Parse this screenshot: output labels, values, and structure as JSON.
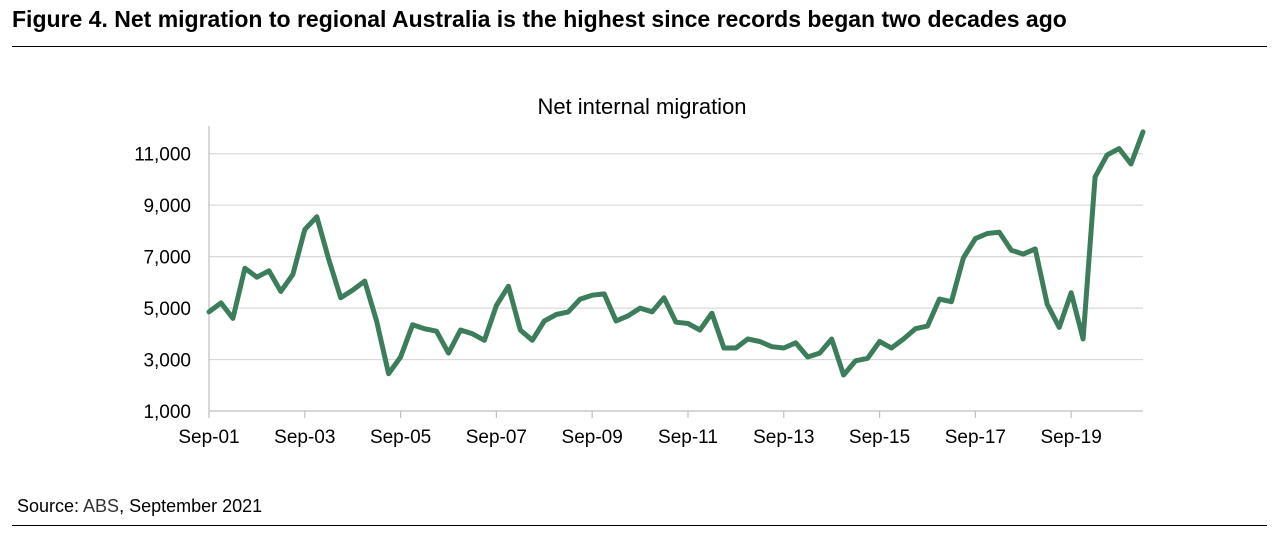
{
  "figure": {
    "title": "Figure 4. Net migration to regional Australia is the highest since records began two decades ago"
  },
  "source": {
    "prefix": "Source: ",
    "name": "ABS",
    "suffix": ", September 2021"
  },
  "colors": {
    "line": "#3c7d5b",
    "grid": "#d9d9d9",
    "axis": "#bfbfbf",
    "text": "#000000"
  },
  "chart_data": {
    "type": "line",
    "title": "Net internal migration",
    "xlabel": "",
    "ylabel": "",
    "ylim": [
      1000,
      12000
    ],
    "yticks": [
      1000,
      3000,
      5000,
      7000,
      9000,
      11000
    ],
    "ytick_labels": [
      "1,000",
      "3,000",
      "5,000",
      "7,000",
      "9,000",
      "11,000"
    ],
    "x_tick_labels": [
      "Sep-01",
      "Sep-03",
      "Sep-05",
      "Sep-07",
      "Sep-09",
      "Sep-11",
      "Sep-13",
      "Sep-15",
      "Sep-17",
      "Sep-19"
    ],
    "x_tick_every": 8,
    "grid": true,
    "legend": "none",
    "series": [
      {
        "values": [
          4850,
          5200,
          4600,
          6550,
          6200,
          6450,
          5650,
          6300,
          8050,
          8550,
          6900,
          5400,
          5700,
          6050,
          4500,
          2450,
          3100,
          4350,
          4200,
          4100,
          3250,
          4150,
          4000,
          3750,
          5100,
          5850,
          4150,
          3750,
          4500,
          4750,
          4850,
          5350,
          5500,
          5550,
          4500,
          4700,
          5000,
          4850,
          5400,
          4450,
          4400,
          4150,
          4800,
          3450,
          3450,
          3800,
          3700,
          3500,
          3450,
          3650,
          3100,
          3250,
          3800,
          2400,
          2950,
          3050,
          3700,
          3450,
          3800,
          4200,
          4300,
          5350,
          5250,
          6950,
          7700,
          7900,
          7950,
          7250,
          7100,
          7300,
          5150,
          4250,
          5600,
          3800,
          10100,
          10950,
          11200,
          10600,
          11850
        ]
      }
    ]
  }
}
